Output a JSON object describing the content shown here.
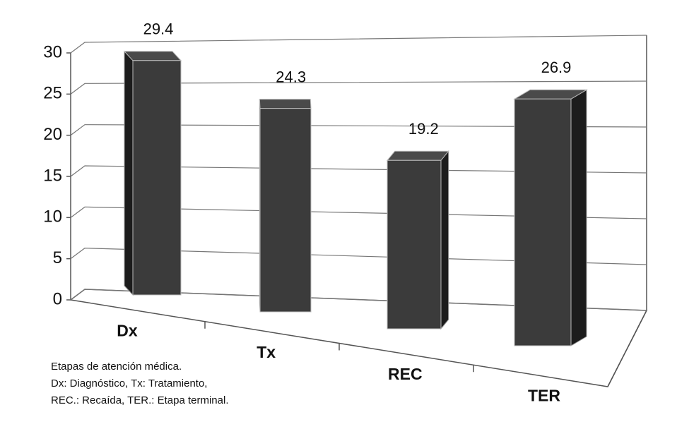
{
  "chart_data": {
    "type": "bar3d",
    "categories": [
      "Dx",
      "Tx",
      "REC",
      "TER"
    ],
    "values": [
      29.4,
      24.3,
      19.2,
      26.9
    ],
    "color": "#3b3b3b",
    "ylim": [
      0,
      30
    ],
    "yticks": [
      0,
      5,
      10,
      15,
      20,
      25,
      30
    ],
    "grid": true,
    "annotations": [
      "Etapas de atención médica.",
      "Dx: Diagnóstico, Tx: Tratamiento,",
      "REC.: Recaída, TER.: Etapa terminal."
    ]
  }
}
